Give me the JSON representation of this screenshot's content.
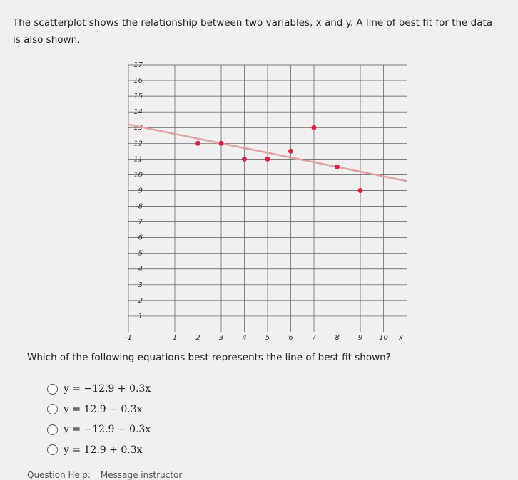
{
  "question": "The scatterplot shows the relationship between two variables, x and y. A line of best fit for the data is also shown.",
  "chart_data": {
    "type": "scatter",
    "xlabel": "x",
    "x": [
      2,
      3,
      4,
      5,
      6,
      7,
      8,
      9
    ],
    "y": [
      12,
      12,
      11,
      11,
      11.5,
      13,
      10.5,
      9
    ],
    "color": "#d6224a",
    "line": {
      "x": [
        -1,
        11
      ],
      "y": [
        13.2,
        9.6
      ],
      "color": "#e0a0a8"
    },
    "xlim": [
      -1,
      11
    ],
    "ylim": [
      0,
      17
    ],
    "xticks": [
      -1,
      1,
      2,
      3,
      4,
      5,
      6,
      7,
      8,
      9,
      10
    ],
    "yticks": [
      1,
      2,
      3,
      4,
      5,
      6,
      7,
      8,
      9,
      10,
      11,
      12,
      13,
      14,
      15,
      16,
      17
    ],
    "grid": true
  },
  "prompt": "Which of the following equations best represents the line of best fit shown?",
  "choices": [
    "y = −12.9 + 0.3x",
    "y = 12.9 − 0.3x",
    "y = −12.9 − 0.3x",
    "y = 12.9 + 0.3x"
  ],
  "footer": [
    "Question Help:",
    "Message instructor"
  ]
}
